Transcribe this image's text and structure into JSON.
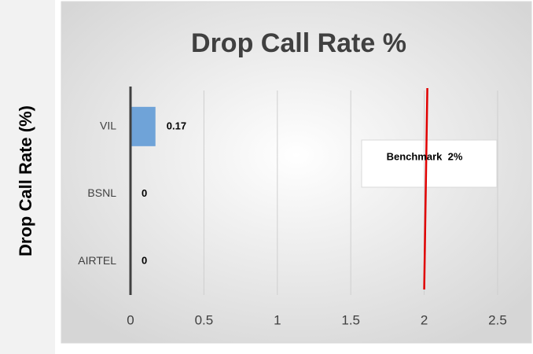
{
  "chart_data": {
    "type": "hbar",
    "title": "Drop Call Rate %",
    "y_label": "Drop Call Rate (%)",
    "categories": [
      "VIL",
      "BSNL",
      "AIRTEL"
    ],
    "values": [
      0.17,
      0,
      0
    ],
    "color": "#6fa3d8",
    "xlim": [
      0,
      2.5
    ],
    "xticks": [
      0,
      0.5,
      1,
      1.5,
      2,
      2.5
    ],
    "grid": true,
    "benchmark": {
      "value": 2,
      "label": "Benchmark  2%",
      "color": "#e00000"
    }
  }
}
